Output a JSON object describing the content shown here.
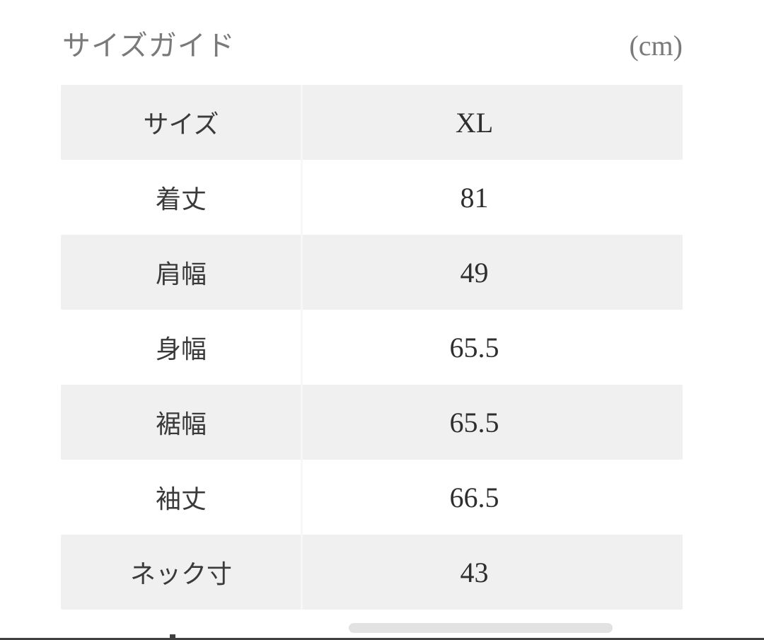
{
  "header": {
    "title": "サイズガイド",
    "unit": "(cm)"
  },
  "size_table": {
    "rows": [
      {
        "label": "サイズ",
        "value": "XL"
      },
      {
        "label": "着丈",
        "value": "81"
      },
      {
        "label": "肩幅",
        "value": "49"
      },
      {
        "label": "身幅",
        "value": "65.5"
      },
      {
        "label": "裾幅",
        "value": "65.5"
      },
      {
        "label": "袖丈",
        "value": "66.5"
      },
      {
        "label": "ネック寸",
        "value": "43"
      }
    ]
  },
  "colors": {
    "row_alt_bg": "#f0f0f0",
    "column_divider": "#f7f7f7",
    "title_text": "#7a7a7a",
    "label_text": "#3a3a3a",
    "value_text": "#2e2e2e",
    "scrollbar_thumb": "#e2e2e2",
    "bottom_bar": "#404040"
  }
}
